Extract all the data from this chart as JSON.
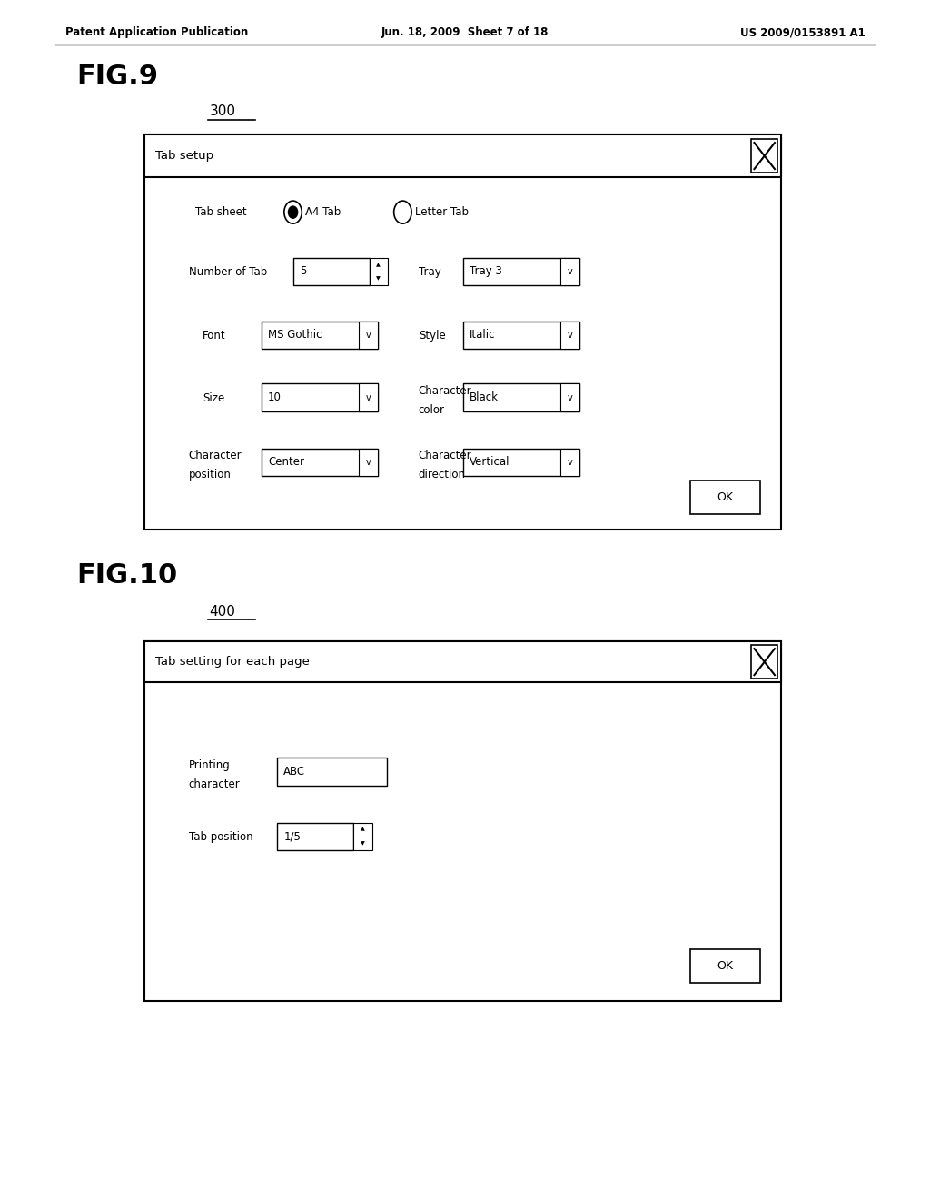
{
  "bg_color": "#ffffff",
  "header_left": "Patent Application Publication",
  "header_center": "Jun. 18, 2009  Sheet 7 of 18",
  "header_right": "US 2009/0153891 A1",
  "fig9_label": "FIG.9",
  "fig9_ref": "300",
  "fig10_label": "FIG.10",
  "fig10_ref": "400"
}
